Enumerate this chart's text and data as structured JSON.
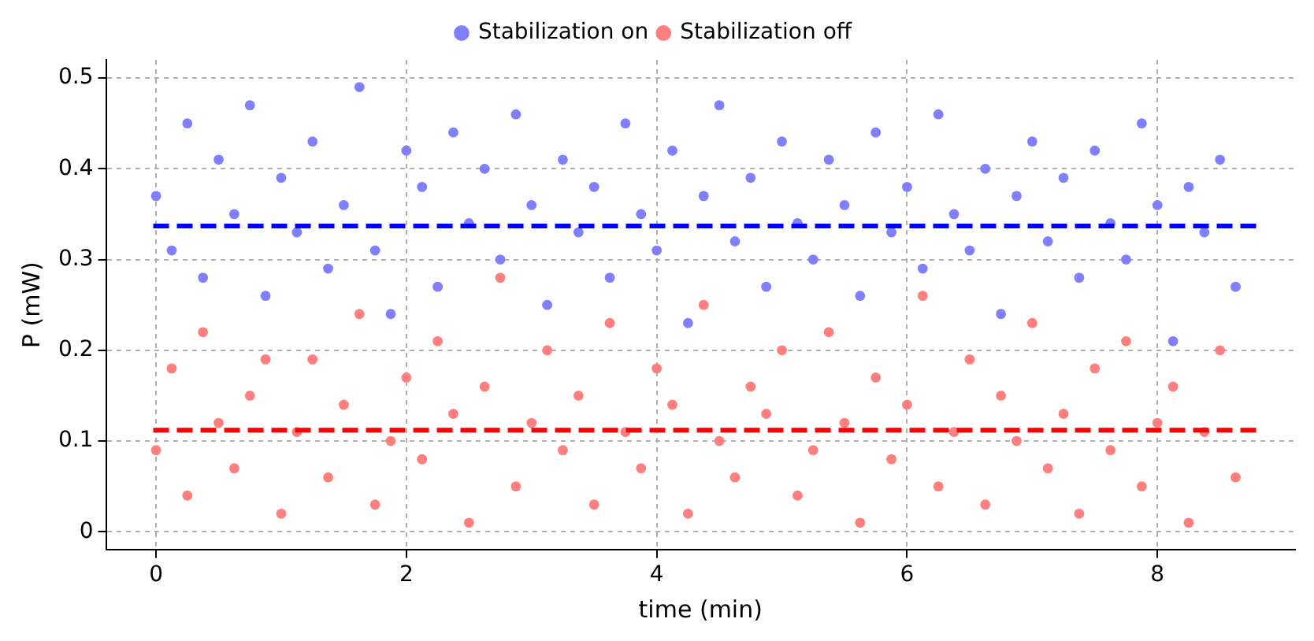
{
  "chart_data": {
    "type": "scatter",
    "xlabel": "time (min)",
    "ylabel": "P (mW)",
    "x": [
      0,
      0.125,
      0.25,
      0.375,
      0.5,
      0.625,
      0.75,
      0.875,
      1,
      1.125,
      1.25,
      1.375,
      1.5,
      1.625,
      1.75,
      1.875,
      2,
      2.125,
      2.25,
      2.375,
      2.5,
      2.625,
      2.75,
      2.875,
      3,
      3.125,
      3.25,
      3.375,
      3.5,
      3.625,
      3.75,
      3.875,
      4,
      4.125,
      4.25,
      4.375,
      4.5,
      4.625,
      4.75,
      4.875,
      5,
      5.125,
      5.25,
      5.375,
      5.5,
      5.625,
      5.75,
      5.875,
      6,
      6.125,
      6.25,
      6.375,
      6.5,
      6.625,
      6.75,
      6.875,
      7,
      7.125,
      7.25,
      7.375,
      7.5,
      7.625,
      7.75,
      7.875,
      8,
      8.125,
      8.25,
      8.375,
      8.5,
      8.625
    ],
    "series": [
      {
        "name": "Stabilization on",
        "color": "#7f7fff",
        "values": [
          0.37,
          0.31,
          0.45,
          0.28,
          0.41,
          0.35,
          0.47,
          0.26,
          0.39,
          0.33,
          0.43,
          0.29,
          0.36,
          0.49,
          0.31,
          0.24,
          0.42,
          0.38,
          0.27,
          0.44,
          0.34,
          0.4,
          0.3,
          0.46,
          0.36,
          0.25,
          0.41,
          0.33,
          0.38,
          0.28,
          0.45,
          0.35,
          0.31,
          0.42,
          0.23,
          0.37,
          0.47,
          0.32,
          0.39,
          0.27,
          0.43,
          0.34,
          0.3,
          0.41,
          0.36,
          0.26,
          0.44,
          0.33,
          0.38,
          0.29,
          0.46,
          0.35,
          0.31,
          0.4,
          0.24,
          0.37,
          0.43,
          0.32,
          0.39,
          0.28,
          0.42,
          0.34,
          0.3,
          0.45,
          0.36,
          0.21,
          0.38,
          0.33,
          0.41,
          0.27
        ]
      },
      {
        "name": "Stabilization off",
        "color": "#ff7f7f",
        "values": [
          0.09,
          0.18,
          0.04,
          0.22,
          0.12,
          0.07,
          0.15,
          0.19,
          0.02,
          0.11,
          0.19,
          0.06,
          0.14,
          0.24,
          0.03,
          0.1,
          0.17,
          0.08,
          0.21,
          0.13,
          0.01,
          0.16,
          0.28,
          0.05,
          0.12,
          0.2,
          0.09,
          0.15,
          0.03,
          0.23,
          0.11,
          0.07,
          0.18,
          0.14,
          0.02,
          0.25,
          0.1,
          0.06,
          0.16,
          0.13,
          0.2,
          0.04,
          0.09,
          0.22,
          0.12,
          0.01,
          0.17,
          0.08,
          0.14,
          0.26,
          0.05,
          0.11,
          0.19,
          0.03,
          0.15,
          0.1,
          0.23,
          0.07,
          0.13,
          0.02,
          0.18,
          0.09,
          0.21,
          0.05,
          0.12,
          0.16,
          0.01,
          0.11,
          0.2,
          0.06
        ]
      }
    ],
    "ref_lines": [
      {
        "axis": "y",
        "value": 0.337,
        "color": "#0000ff",
        "line_style": "dashed"
      },
      {
        "axis": "y",
        "value": 0.112,
        "color": "#ff0000",
        "line_style": "dashed"
      }
    ],
    "xlim": [
      -0.4,
      9.1
    ],
    "xticks": [
      0,
      2,
      4,
      6,
      8
    ],
    "ylim": [
      -0.02,
      0.52
    ],
    "yticks": [
      0,
      0.1,
      0.2,
      0.3,
      0.4,
      0.5
    ],
    "grid": true,
    "legend": "top",
    "marker": "circle"
  }
}
